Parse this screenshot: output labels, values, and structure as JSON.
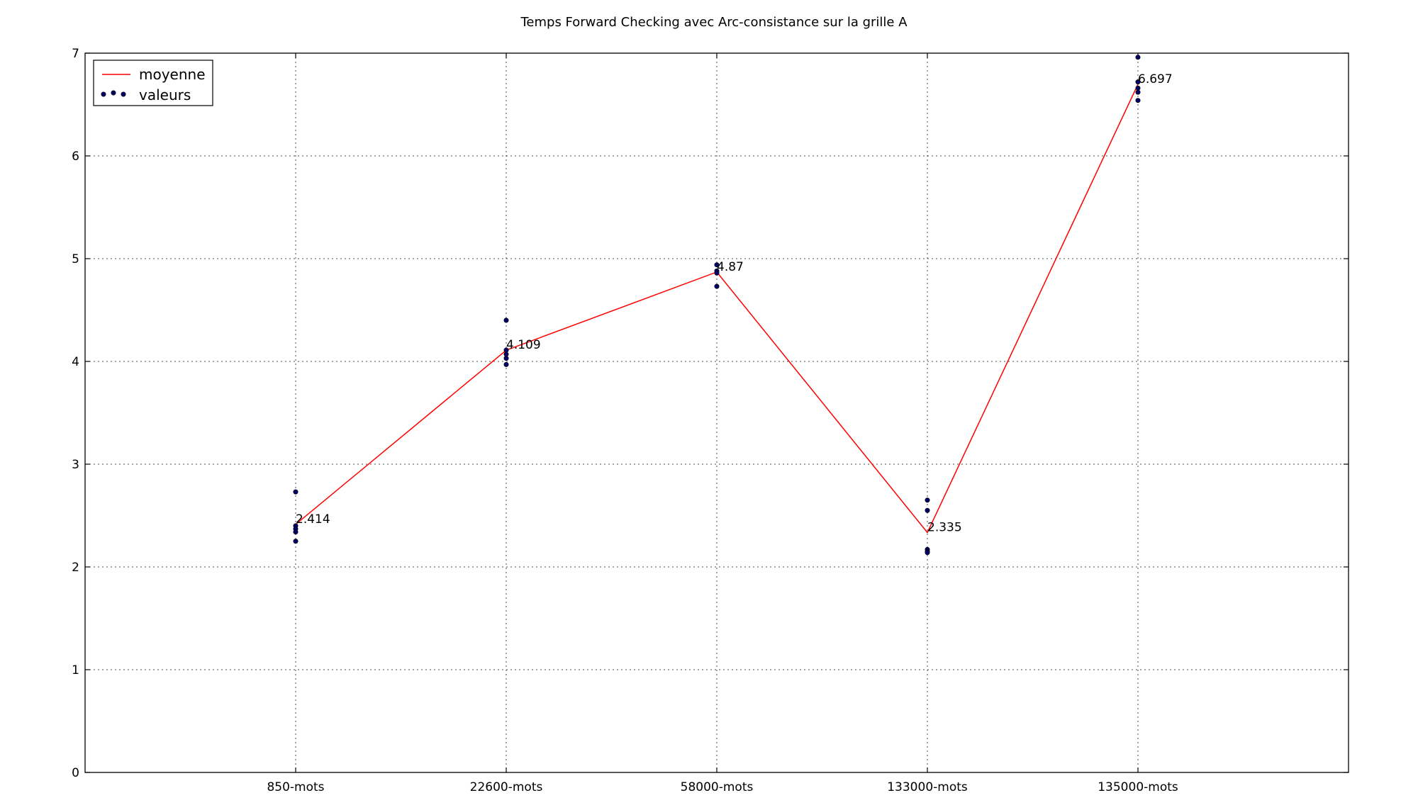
{
  "chart_data": {
    "type": "line",
    "title": "Temps Forward Checking avec Arc-consistance sur la grille A",
    "xlabel": "",
    "ylabel": "",
    "categories": [
      "850-mots",
      "22600-mots",
      "58000-mots",
      "133000-mots",
      "135000-mots"
    ],
    "ylim": [
      0,
      7
    ],
    "yticks": [
      0,
      1,
      2,
      3,
      4,
      5,
      6,
      7
    ],
    "grid": true,
    "legend_position": "top-left",
    "series": [
      {
        "name": "moyenne",
        "kind": "line",
        "color": "#ff0000",
        "values": [
          2.414,
          4.109,
          4.87,
          2.335,
          6.697
        ],
        "labels": [
          "2.414",
          "4.109",
          "4.87",
          "2.335",
          "6.697"
        ]
      },
      {
        "name": "valeurs",
        "kind": "scatter",
        "color": "#000066",
        "points": [
          [
            2.73,
            2.4,
            2.37,
            2.34,
            2.25
          ],
          [
            4.4,
            4.11,
            4.07,
            4.03,
            3.97
          ],
          [
            4.94,
            4.88,
            4.86,
            4.73
          ],
          [
            2.65,
            2.55,
            2.17,
            2.15,
            2.14
          ],
          [
            6.96,
            6.72,
            6.66,
            6.62,
            6.54
          ]
        ]
      }
    ]
  }
}
